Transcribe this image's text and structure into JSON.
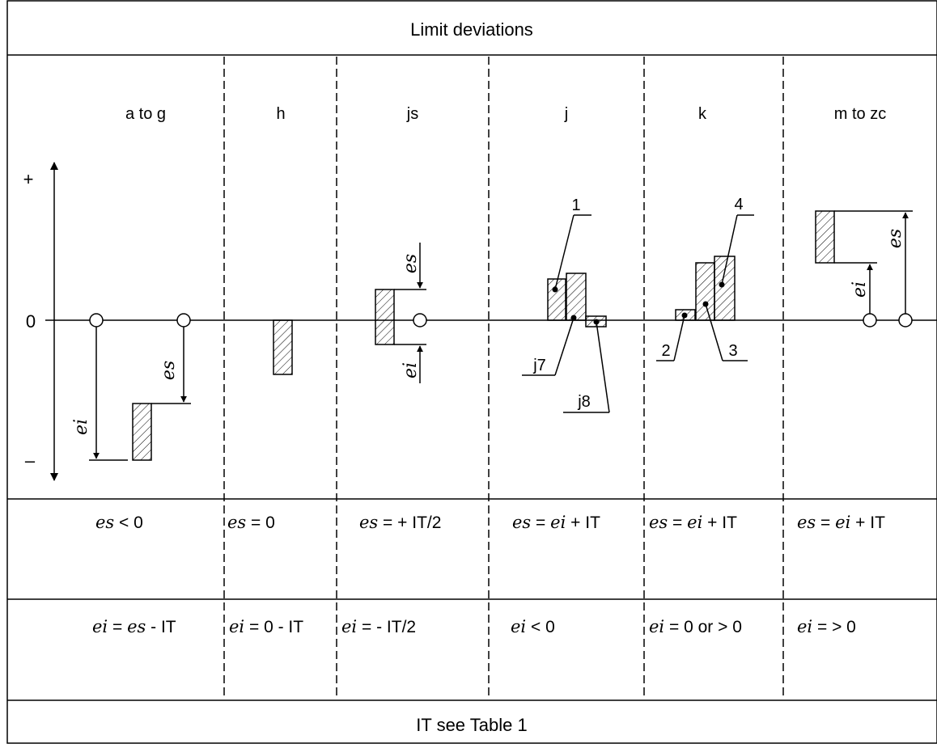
{
  "title": "Limit deviations",
  "axis": {
    "plus": "+",
    "zero": "0",
    "minus": "–"
  },
  "columns": [
    {
      "key": "a-to-g",
      "header": "a to g",
      "es_formula": {
        "var": "es",
        "rest": " < 0"
      },
      "ei_formula": {
        "parts": [
          {
            "v": "ei"
          },
          {
            "t": " = "
          },
          {
            "v": "es"
          },
          {
            "t": " - IT"
          }
        ]
      }
    },
    {
      "key": "h",
      "header": "h",
      "es_formula": {
        "var": "es",
        "rest": " = 0"
      },
      "ei_formula": {
        "parts": [
          {
            "v": "ei"
          },
          {
            "t": " = 0 - IT"
          }
        ]
      }
    },
    {
      "key": "js",
      "header": "js",
      "es_formula": {
        "var": "es",
        "rest": " = + IT/2"
      },
      "ei_formula": {
        "parts": [
          {
            "v": "ei"
          },
          {
            "t": " = - IT/2"
          }
        ]
      }
    },
    {
      "key": "j",
      "header": "j",
      "es_formula": {
        "parts": [
          {
            "v": "es"
          },
          {
            "t": " = "
          },
          {
            "v": "ei"
          },
          {
            "t": " + IT"
          }
        ]
      },
      "ei_formula": {
        "parts": [
          {
            "v": "ei"
          },
          {
            "t": " < 0"
          }
        ]
      }
    },
    {
      "key": "k",
      "header": "k",
      "es_formula": {
        "parts": [
          {
            "v": "es"
          },
          {
            "t": " = "
          },
          {
            "v": "ei"
          },
          {
            "t": " + IT"
          }
        ]
      },
      "ei_formula": {
        "parts": [
          {
            "v": "ei"
          },
          {
            "t": " = 0 or > 0"
          }
        ]
      }
    },
    {
      "key": "m-to-zc",
      "header": "m to zc",
      "es_formula": {
        "parts": [
          {
            "v": "es"
          },
          {
            "t": " = "
          },
          {
            "v": "ei"
          },
          {
            "t": " + IT"
          }
        ]
      },
      "ei_formula": {
        "parts": [
          {
            "v": "ei"
          },
          {
            "t": " = > 0"
          }
        ]
      }
    }
  ],
  "labels": {
    "es": "es",
    "ei": "ei",
    "n1": "1",
    "n2": "2",
    "n3": "3",
    "n4": "4",
    "j7": "j7",
    "j8": "j8"
  },
  "footer": "IT see Table 1"
}
